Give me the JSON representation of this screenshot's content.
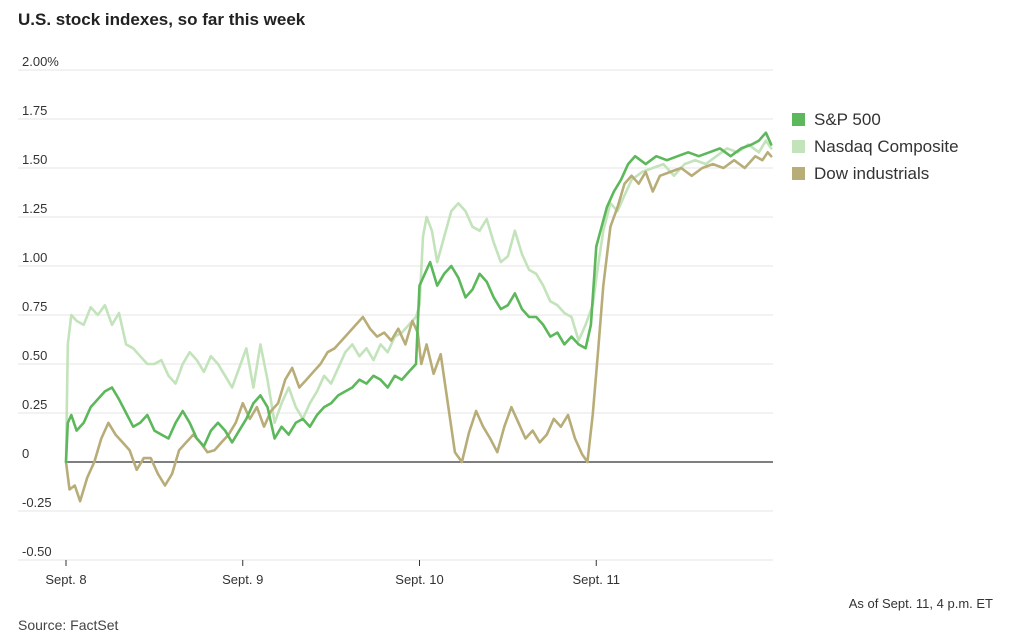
{
  "title": "U.S. stock indexes, so far this week",
  "note": "As of Sept. 11, 4 p.m. ET",
  "source": "Source: FactSet",
  "colors": {
    "sp500": "#5cb85a",
    "nasdaq": "#c3e3bb",
    "dow": "#b8ad78",
    "grid": "#e6e6e6",
    "zero": "#333333"
  },
  "chart_data": {
    "type": "line",
    "ylim": [
      -0.5,
      2.0
    ],
    "yticks": [
      {
        "v": 2.0,
        "label": "2.00%"
      },
      {
        "v": 1.75,
        "label": "1.75"
      },
      {
        "v": 1.5,
        "label": "1.50"
      },
      {
        "v": 1.25,
        "label": "1.25"
      },
      {
        "v": 1.0,
        "label": "1.00"
      },
      {
        "v": 0.75,
        "label": "0.75"
      },
      {
        "v": 0.5,
        "label": "0.50"
      },
      {
        "v": 0.25,
        "label": "0.25"
      },
      {
        "v": 0,
        "label": "0"
      },
      {
        "v": -0.25,
        "label": "-0.25"
      },
      {
        "v": -0.5,
        "label": "-0.50"
      }
    ],
    "xlim": [
      0,
      4
    ],
    "xticks": [
      {
        "v": 0,
        "label": "Sept. 8"
      },
      {
        "v": 1,
        "label": "Sept. 9"
      },
      {
        "v": 2,
        "label": "Sept. 10"
      },
      {
        "v": 3,
        "label": "Sept. 11"
      }
    ],
    "series": [
      {
        "name": "Nasdaq Composite",
        "color": "#c3e3bb",
        "points": [
          [
            0,
            0
          ],
          [
            0.01,
            0.6
          ],
          [
            0.03,
            0.75
          ],
          [
            0.06,
            0.72
          ],
          [
            0.1,
            0.7
          ],
          [
            0.14,
            0.79
          ],
          [
            0.18,
            0.75
          ],
          [
            0.22,
            0.8
          ],
          [
            0.26,
            0.7
          ],
          [
            0.3,
            0.76
          ],
          [
            0.34,
            0.6
          ],
          [
            0.38,
            0.58
          ],
          [
            0.42,
            0.54
          ],
          [
            0.46,
            0.5
          ],
          [
            0.5,
            0.5
          ],
          [
            0.54,
            0.52
          ],
          [
            0.58,
            0.44
          ],
          [
            0.62,
            0.4
          ],
          [
            0.66,
            0.5
          ],
          [
            0.7,
            0.56
          ],
          [
            0.74,
            0.52
          ],
          [
            0.78,
            0.46
          ],
          [
            0.82,
            0.54
          ],
          [
            0.86,
            0.5
          ],
          [
            0.9,
            0.44
          ],
          [
            0.94,
            0.38
          ],
          [
            0.98,
            0.48
          ],
          [
            1.02,
            0.58
          ],
          [
            1.06,
            0.38
          ],
          [
            1.1,
            0.6
          ],
          [
            1.14,
            0.42
          ],
          [
            1.18,
            0.2
          ],
          [
            1.22,
            0.3
          ],
          [
            1.26,
            0.38
          ],
          [
            1.3,
            0.28
          ],
          [
            1.34,
            0.22
          ],
          [
            1.38,
            0.3
          ],
          [
            1.42,
            0.36
          ],
          [
            1.46,
            0.44
          ],
          [
            1.5,
            0.4
          ],
          [
            1.54,
            0.48
          ],
          [
            1.58,
            0.56
          ],
          [
            1.62,
            0.6
          ],
          [
            1.66,
            0.54
          ],
          [
            1.7,
            0.58
          ],
          [
            1.74,
            0.52
          ],
          [
            1.78,
            0.6
          ],
          [
            1.82,
            0.56
          ],
          [
            1.86,
            0.64
          ],
          [
            1.9,
            0.66
          ],
          [
            1.94,
            0.7
          ],
          [
            1.98,
            0.74
          ],
          [
            2.0,
            0.8
          ],
          [
            2.02,
            1.15
          ],
          [
            2.04,
            1.25
          ],
          [
            2.07,
            1.18
          ],
          [
            2.1,
            1.02
          ],
          [
            2.14,
            1.15
          ],
          [
            2.18,
            1.28
          ],
          [
            2.22,
            1.32
          ],
          [
            2.26,
            1.28
          ],
          [
            2.3,
            1.2
          ],
          [
            2.34,
            1.18
          ],
          [
            2.38,
            1.24
          ],
          [
            2.42,
            1.12
          ],
          [
            2.46,
            1.02
          ],
          [
            2.5,
            1.05
          ],
          [
            2.54,
            1.18
          ],
          [
            2.58,
            1.06
          ],
          [
            2.62,
            0.98
          ],
          [
            2.66,
            0.96
          ],
          [
            2.7,
            0.9
          ],
          [
            2.74,
            0.82
          ],
          [
            2.78,
            0.8
          ],
          [
            2.82,
            0.76
          ],
          [
            2.86,
            0.74
          ],
          [
            2.9,
            0.62
          ],
          [
            2.94,
            0.7
          ],
          [
            2.98,
            0.8
          ],
          [
            3.01,
            1.0
          ],
          [
            3.04,
            1.18
          ],
          [
            3.08,
            1.32
          ],
          [
            3.12,
            1.28
          ],
          [
            3.16,
            1.36
          ],
          [
            3.2,
            1.44
          ],
          [
            3.26,
            1.48
          ],
          [
            3.32,
            1.5
          ],
          [
            3.38,
            1.52
          ],
          [
            3.44,
            1.46
          ],
          [
            3.5,
            1.52
          ],
          [
            3.56,
            1.54
          ],
          [
            3.62,
            1.52
          ],
          [
            3.68,
            1.56
          ],
          [
            3.74,
            1.6
          ],
          [
            3.8,
            1.58
          ],
          [
            3.86,
            1.62
          ],
          [
            3.92,
            1.58
          ],
          [
            3.96,
            1.64
          ],
          [
            3.99,
            1.6
          ]
        ]
      },
      {
        "name": "Dow industrials",
        "color": "#b8ad78",
        "points": [
          [
            0,
            0
          ],
          [
            0.02,
            -0.14
          ],
          [
            0.05,
            -0.12
          ],
          [
            0.08,
            -0.2
          ],
          [
            0.12,
            -0.08
          ],
          [
            0.16,
            0.0
          ],
          [
            0.2,
            0.12
          ],
          [
            0.24,
            0.2
          ],
          [
            0.28,
            0.14
          ],
          [
            0.32,
            0.1
          ],
          [
            0.36,
            0.06
          ],
          [
            0.4,
            -0.04
          ],
          [
            0.44,
            0.02
          ],
          [
            0.48,
            0.02
          ],
          [
            0.52,
            -0.06
          ],
          [
            0.56,
            -0.12
          ],
          [
            0.6,
            -0.06
          ],
          [
            0.64,
            0.06
          ],
          [
            0.68,
            0.1
          ],
          [
            0.72,
            0.14
          ],
          [
            0.76,
            0.1
          ],
          [
            0.8,
            0.05
          ],
          [
            0.84,
            0.06
          ],
          [
            0.88,
            0.1
          ],
          [
            0.92,
            0.14
          ],
          [
            0.96,
            0.2
          ],
          [
            1.0,
            0.3
          ],
          [
            1.04,
            0.22
          ],
          [
            1.08,
            0.28
          ],
          [
            1.12,
            0.18
          ],
          [
            1.16,
            0.26
          ],
          [
            1.2,
            0.3
          ],
          [
            1.24,
            0.42
          ],
          [
            1.28,
            0.48
          ],
          [
            1.32,
            0.38
          ],
          [
            1.36,
            0.42
          ],
          [
            1.4,
            0.46
          ],
          [
            1.44,
            0.5
          ],
          [
            1.48,
            0.56
          ],
          [
            1.52,
            0.58
          ],
          [
            1.56,
            0.62
          ],
          [
            1.6,
            0.66
          ],
          [
            1.64,
            0.7
          ],
          [
            1.68,
            0.74
          ],
          [
            1.72,
            0.68
          ],
          [
            1.76,
            0.64
          ],
          [
            1.8,
            0.66
          ],
          [
            1.84,
            0.62
          ],
          [
            1.88,
            0.68
          ],
          [
            1.92,
            0.6
          ],
          [
            1.96,
            0.72
          ],
          [
            1.99,
            0.66
          ],
          [
            2.01,
            0.5
          ],
          [
            2.04,
            0.6
          ],
          [
            2.08,
            0.45
          ],
          [
            2.12,
            0.55
          ],
          [
            2.16,
            0.3
          ],
          [
            2.2,
            0.05
          ],
          [
            2.24,
            0.0
          ],
          [
            2.28,
            0.15
          ],
          [
            2.32,
            0.26
          ],
          [
            2.36,
            0.18
          ],
          [
            2.4,
            0.12
          ],
          [
            2.44,
            0.05
          ],
          [
            2.48,
            0.18
          ],
          [
            2.52,
            0.28
          ],
          [
            2.56,
            0.2
          ],
          [
            2.6,
            0.12
          ],
          [
            2.64,
            0.16
          ],
          [
            2.68,
            0.1
          ],
          [
            2.72,
            0.14
          ],
          [
            2.76,
            0.22
          ],
          [
            2.8,
            0.18
          ],
          [
            2.84,
            0.24
          ],
          [
            2.88,
            0.12
          ],
          [
            2.92,
            0.04
          ],
          [
            2.95,
            0.0
          ],
          [
            2.98,
            0.24
          ],
          [
            3.01,
            0.56
          ],
          [
            3.04,
            0.9
          ],
          [
            3.08,
            1.2
          ],
          [
            3.12,
            1.3
          ],
          [
            3.16,
            1.42
          ],
          [
            3.2,
            1.46
          ],
          [
            3.24,
            1.42
          ],
          [
            3.28,
            1.48
          ],
          [
            3.32,
            1.38
          ],
          [
            3.36,
            1.46
          ],
          [
            3.42,
            1.48
          ],
          [
            3.48,
            1.5
          ],
          [
            3.54,
            1.46
          ],
          [
            3.6,
            1.5
          ],
          [
            3.66,
            1.52
          ],
          [
            3.72,
            1.5
          ],
          [
            3.78,
            1.54
          ],
          [
            3.84,
            1.5
          ],
          [
            3.9,
            1.56
          ],
          [
            3.94,
            1.54
          ],
          [
            3.97,
            1.58
          ],
          [
            3.99,
            1.56
          ]
        ]
      },
      {
        "name": "S&P 500",
        "color": "#5cb85a",
        "points": [
          [
            0,
            0
          ],
          [
            0.01,
            0.2
          ],
          [
            0.03,
            0.24
          ],
          [
            0.06,
            0.16
          ],
          [
            0.1,
            0.2
          ],
          [
            0.14,
            0.28
          ],
          [
            0.18,
            0.32
          ],
          [
            0.22,
            0.36
          ],
          [
            0.26,
            0.38
          ],
          [
            0.3,
            0.32
          ],
          [
            0.34,
            0.25
          ],
          [
            0.38,
            0.18
          ],
          [
            0.42,
            0.2
          ],
          [
            0.46,
            0.24
          ],
          [
            0.5,
            0.16
          ],
          [
            0.54,
            0.14
          ],
          [
            0.58,
            0.12
          ],
          [
            0.62,
            0.2
          ],
          [
            0.66,
            0.26
          ],
          [
            0.7,
            0.2
          ],
          [
            0.74,
            0.12
          ],
          [
            0.78,
            0.08
          ],
          [
            0.82,
            0.16
          ],
          [
            0.86,
            0.2
          ],
          [
            0.9,
            0.16
          ],
          [
            0.94,
            0.1
          ],
          [
            0.98,
            0.16
          ],
          [
            1.02,
            0.22
          ],
          [
            1.06,
            0.3
          ],
          [
            1.1,
            0.34
          ],
          [
            1.14,
            0.28
          ],
          [
            1.18,
            0.12
          ],
          [
            1.22,
            0.18
          ],
          [
            1.26,
            0.14
          ],
          [
            1.3,
            0.2
          ],
          [
            1.34,
            0.22
          ],
          [
            1.38,
            0.18
          ],
          [
            1.42,
            0.24
          ],
          [
            1.46,
            0.28
          ],
          [
            1.5,
            0.3
          ],
          [
            1.54,
            0.34
          ],
          [
            1.58,
            0.36
          ],
          [
            1.62,
            0.38
          ],
          [
            1.66,
            0.42
          ],
          [
            1.7,
            0.4
          ],
          [
            1.74,
            0.44
          ],
          [
            1.78,
            0.42
          ],
          [
            1.82,
            0.38
          ],
          [
            1.86,
            0.44
          ],
          [
            1.9,
            0.42
          ],
          [
            1.94,
            0.46
          ],
          [
            1.98,
            0.5
          ],
          [
            2.0,
            0.9
          ],
          [
            2.03,
            0.96
          ],
          [
            2.06,
            1.02
          ],
          [
            2.1,
            0.9
          ],
          [
            2.14,
            0.96
          ],
          [
            2.18,
            1.0
          ],
          [
            2.22,
            0.94
          ],
          [
            2.26,
            0.84
          ],
          [
            2.3,
            0.88
          ],
          [
            2.34,
            0.96
          ],
          [
            2.38,
            0.92
          ],
          [
            2.42,
            0.84
          ],
          [
            2.46,
            0.78
          ],
          [
            2.5,
            0.8
          ],
          [
            2.54,
            0.86
          ],
          [
            2.58,
            0.78
          ],
          [
            2.62,
            0.74
          ],
          [
            2.66,
            0.74
          ],
          [
            2.7,
            0.7
          ],
          [
            2.74,
            0.64
          ],
          [
            2.78,
            0.66
          ],
          [
            2.82,
            0.6
          ],
          [
            2.86,
            0.64
          ],
          [
            2.9,
            0.6
          ],
          [
            2.94,
            0.58
          ],
          [
            2.97,
            0.7
          ],
          [
            3.0,
            1.1
          ],
          [
            3.03,
            1.2
          ],
          [
            3.06,
            1.3
          ],
          [
            3.1,
            1.38
          ],
          [
            3.14,
            1.44
          ],
          [
            3.18,
            1.52
          ],
          [
            3.22,
            1.56
          ],
          [
            3.28,
            1.52
          ],
          [
            3.34,
            1.56
          ],
          [
            3.4,
            1.54
          ],
          [
            3.46,
            1.56
          ],
          [
            3.52,
            1.58
          ],
          [
            3.58,
            1.56
          ],
          [
            3.64,
            1.58
          ],
          [
            3.7,
            1.6
          ],
          [
            3.76,
            1.56
          ],
          [
            3.82,
            1.6
          ],
          [
            3.88,
            1.62
          ],
          [
            3.92,
            1.64
          ],
          [
            3.96,
            1.68
          ],
          [
            3.99,
            1.62
          ]
        ]
      }
    ]
  }
}
